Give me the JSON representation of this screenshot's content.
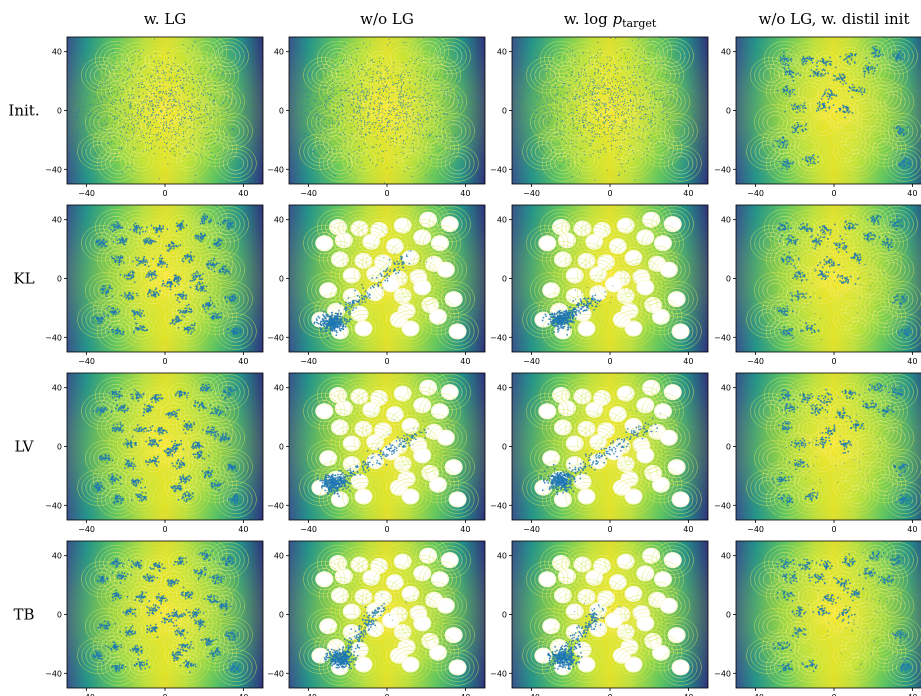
{
  "colors": {
    "scatter": "#1f77b4",
    "colormap": [
      "#440154",
      "#3b528b",
      "#21918c",
      "#5ec962",
      "#fde725"
    ]
  },
  "columns": [
    {
      "id": "wlg",
      "title": "w. LG"
    },
    {
      "id": "wolg",
      "title": "w/o LG"
    },
    {
      "id": "wlogp",
      "title_prefix": "w. log ",
      "title_math": "p",
      "title_sub": "target"
    },
    {
      "id": "wolg-distil",
      "title": "w/o LG, w. distil init"
    }
  ],
  "rows": [
    {
      "id": "init",
      "label": "Init."
    },
    {
      "id": "kl",
      "label": "KL"
    },
    {
      "id": "lv",
      "label": "LV"
    },
    {
      "id": "tb",
      "label": "TB"
    }
  ],
  "chart_data": {
    "type": "scatter",
    "subplot_grid": [
      4,
      4
    ],
    "background": "contour (log-density of 40-mode Gaussian mixture target)",
    "xlim": [
      -50,
      50
    ],
    "ylim": [
      -50,
      50
    ],
    "x_ticks": [
      -40,
      0,
      40
    ],
    "y_ticks": [
      -40,
      0,
      40
    ],
    "x_tick_labels": [
      "-40",
      "0",
      "40"
    ],
    "y_tick_labels": [
      "-40",
      "0",
      "40"
    ],
    "target_modes": [
      [
        -25,
        35
      ],
      [
        -14,
        34
      ],
      [
        -4,
        33
      ],
      [
        8,
        36
      ],
      [
        21,
        40
      ],
      [
        32,
        37
      ],
      [
        -22,
        26
      ],
      [
        -8,
        25
      ],
      [
        4,
        22
      ],
      [
        18,
        28
      ],
      [
        27,
        24
      ],
      [
        -24,
        13
      ],
      [
        -12,
        12
      ],
      [
        -2,
        11
      ],
      [
        12,
        14
      ],
      [
        24,
        10
      ],
      [
        -18,
        2
      ],
      [
        -6,
        3
      ],
      [
        6,
        0
      ],
      [
        16,
        1
      ],
      [
        30,
        6
      ],
      [
        -30,
        -8
      ],
      [
        -18,
        -12
      ],
      [
        -6,
        -10
      ],
      [
        8,
        -12
      ],
      [
        22,
        -18
      ],
      [
        34,
        -14
      ],
      [
        -26,
        -22
      ],
      [
        -14,
        -24
      ],
      [
        10,
        -22
      ],
      [
        18,
        -6
      ],
      [
        -34,
        -28
      ],
      [
        -24,
        -36
      ],
      [
        -12,
        -34
      ],
      [
        6,
        -28
      ],
      [
        12,
        -34
      ],
      [
        26,
        -26
      ],
      [
        36,
        -36
      ],
      [
        -32,
        24
      ],
      [
        2,
        -4
      ]
    ],
    "mode_ids_used": {
      "distil_init": [
        0,
        1,
        2,
        3,
        4,
        5,
        6,
        7,
        8,
        9,
        11,
        13,
        14,
        16,
        17,
        18,
        22,
        26,
        27,
        32,
        33,
        37
      ],
      "distil_kl": [
        0,
        1,
        2,
        3,
        4,
        5,
        6,
        7,
        8,
        9,
        11,
        13,
        14,
        16,
        17,
        18,
        22,
        26,
        27,
        32,
        33,
        37,
        10
      ],
      "distil_lv": [
        0,
        1,
        2,
        3,
        4,
        5,
        6,
        7,
        8,
        9,
        10,
        11,
        13,
        14,
        16,
        17,
        18,
        22,
        26,
        27,
        32,
        33,
        37
      ],
      "distil_tb": [
        0,
        1,
        2,
        3,
        4,
        5,
        6,
        7,
        8,
        9,
        10,
        11,
        13,
        14,
        16,
        17,
        18,
        22,
        26,
        27,
        32,
        33,
        37
      ]
    },
    "collapse_diagonal": {
      "wolg_kl": {
        "start": [
          -30,
          -32
        ],
        "end": [
          10,
          14
        ],
        "blob": [
          -28,
          -30
        ]
      },
      "wolg_lv": {
        "start": [
          -28,
          -26
        ],
        "end": [
          18,
          10
        ],
        "blob": [
          -27,
          -25
        ]
      },
      "wolg_tb": {
        "start": [
          -24,
          -30
        ],
        "end": [
          -4,
          4
        ],
        "blob": [
          -24,
          -30
        ]
      },
      "wlogp_kl": {
        "start": [
          -26,
          -30
        ],
        "end": [
          -8,
          -14
        ],
        "blob": [
          -25,
          -28
        ]
      },
      "wlogp_lv": {
        "start": [
          -26,
          -24
        ],
        "end": [
          22,
          16
        ],
        "blob": [
          -25,
          -24
        ]
      },
      "wlogp_tb": {
        "start": [
          -24,
          -30
        ],
        "end": [
          -6,
          2
        ],
        "blob": [
          -24,
          -30
        ]
      }
    }
  }
}
